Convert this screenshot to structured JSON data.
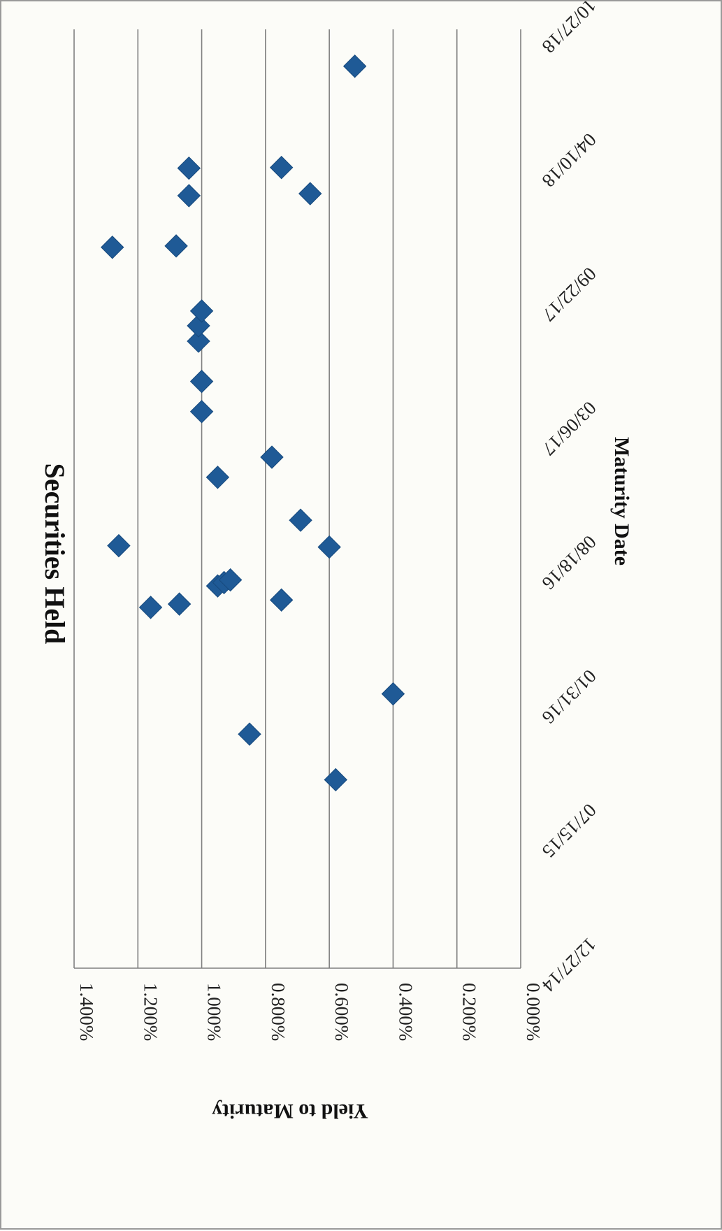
{
  "chart_data": {
    "type": "scatter",
    "title": "Securities Held",
    "xlabel": "Maturity Date",
    "ylabel": "Yield to Maturity",
    "x_tick_labels": [
      "12/27/14",
      "07/15/15",
      "01/31/16",
      "08/18/16",
      "03/06/17",
      "09/22/17",
      "04/10/18",
      "10/27/18"
    ],
    "y_tick_labels": [
      "0.000%",
      "0.200%",
      "0.400%",
      "0.600%",
      "0.800%",
      "1.000%",
      "1.200%",
      "1.400%"
    ],
    "xlim": [
      "12/27/14",
      "10/27/18"
    ],
    "ylim": [
      0,
      1.4
    ],
    "grid": "horizontal gridlines",
    "orientation": "rotated 90 degrees clockwise",
    "marker": "diamond",
    "color": "#1f5a96",
    "points": [
      {
        "x": "10/04/15",
        "y": 0.58
      },
      {
        "x": "12/11/15",
        "y": 0.85
      },
      {
        "x": "02/09/16",
        "y": 0.4
      },
      {
        "x": "06/17/16",
        "y": 1.16
      },
      {
        "x": "06/22/16",
        "y": 1.07
      },
      {
        "x": "06/28/16",
        "y": 0.75
      },
      {
        "x": "07/19/16",
        "y": 0.95
      },
      {
        "x": "07/24/16",
        "y": 0.93
      },
      {
        "x": "07/28/16",
        "y": 0.91
      },
      {
        "x": "09/15/16",
        "y": 0.6
      },
      {
        "x": "09/17/16",
        "y": 1.26
      },
      {
        "x": "10/25/16",
        "y": 0.69
      },
      {
        "x": "12/28/16",
        "y": 0.95
      },
      {
        "x": "01/27/17",
        "y": 0.78
      },
      {
        "x": "04/05/17",
        "y": 1.0
      },
      {
        "x": "05/20/17",
        "y": 1.0
      },
      {
        "x": "07/19/17",
        "y": 1.01
      },
      {
        "x": "08/11/17",
        "y": 1.01
      },
      {
        "x": "09/02/17",
        "y": 1.0
      },
      {
        "x": "12/06/17",
        "y": 1.28
      },
      {
        "x": "12/08/17",
        "y": 1.08
      },
      {
        "x": "02/21/18",
        "y": 1.04
      },
      {
        "x": "02/24/18",
        "y": 0.66
      },
      {
        "x": "04/03/18",
        "y": 1.04
      },
      {
        "x": "04/04/18",
        "y": 0.75
      },
      {
        "x": "09/02/18",
        "y": 0.52
      }
    ]
  }
}
